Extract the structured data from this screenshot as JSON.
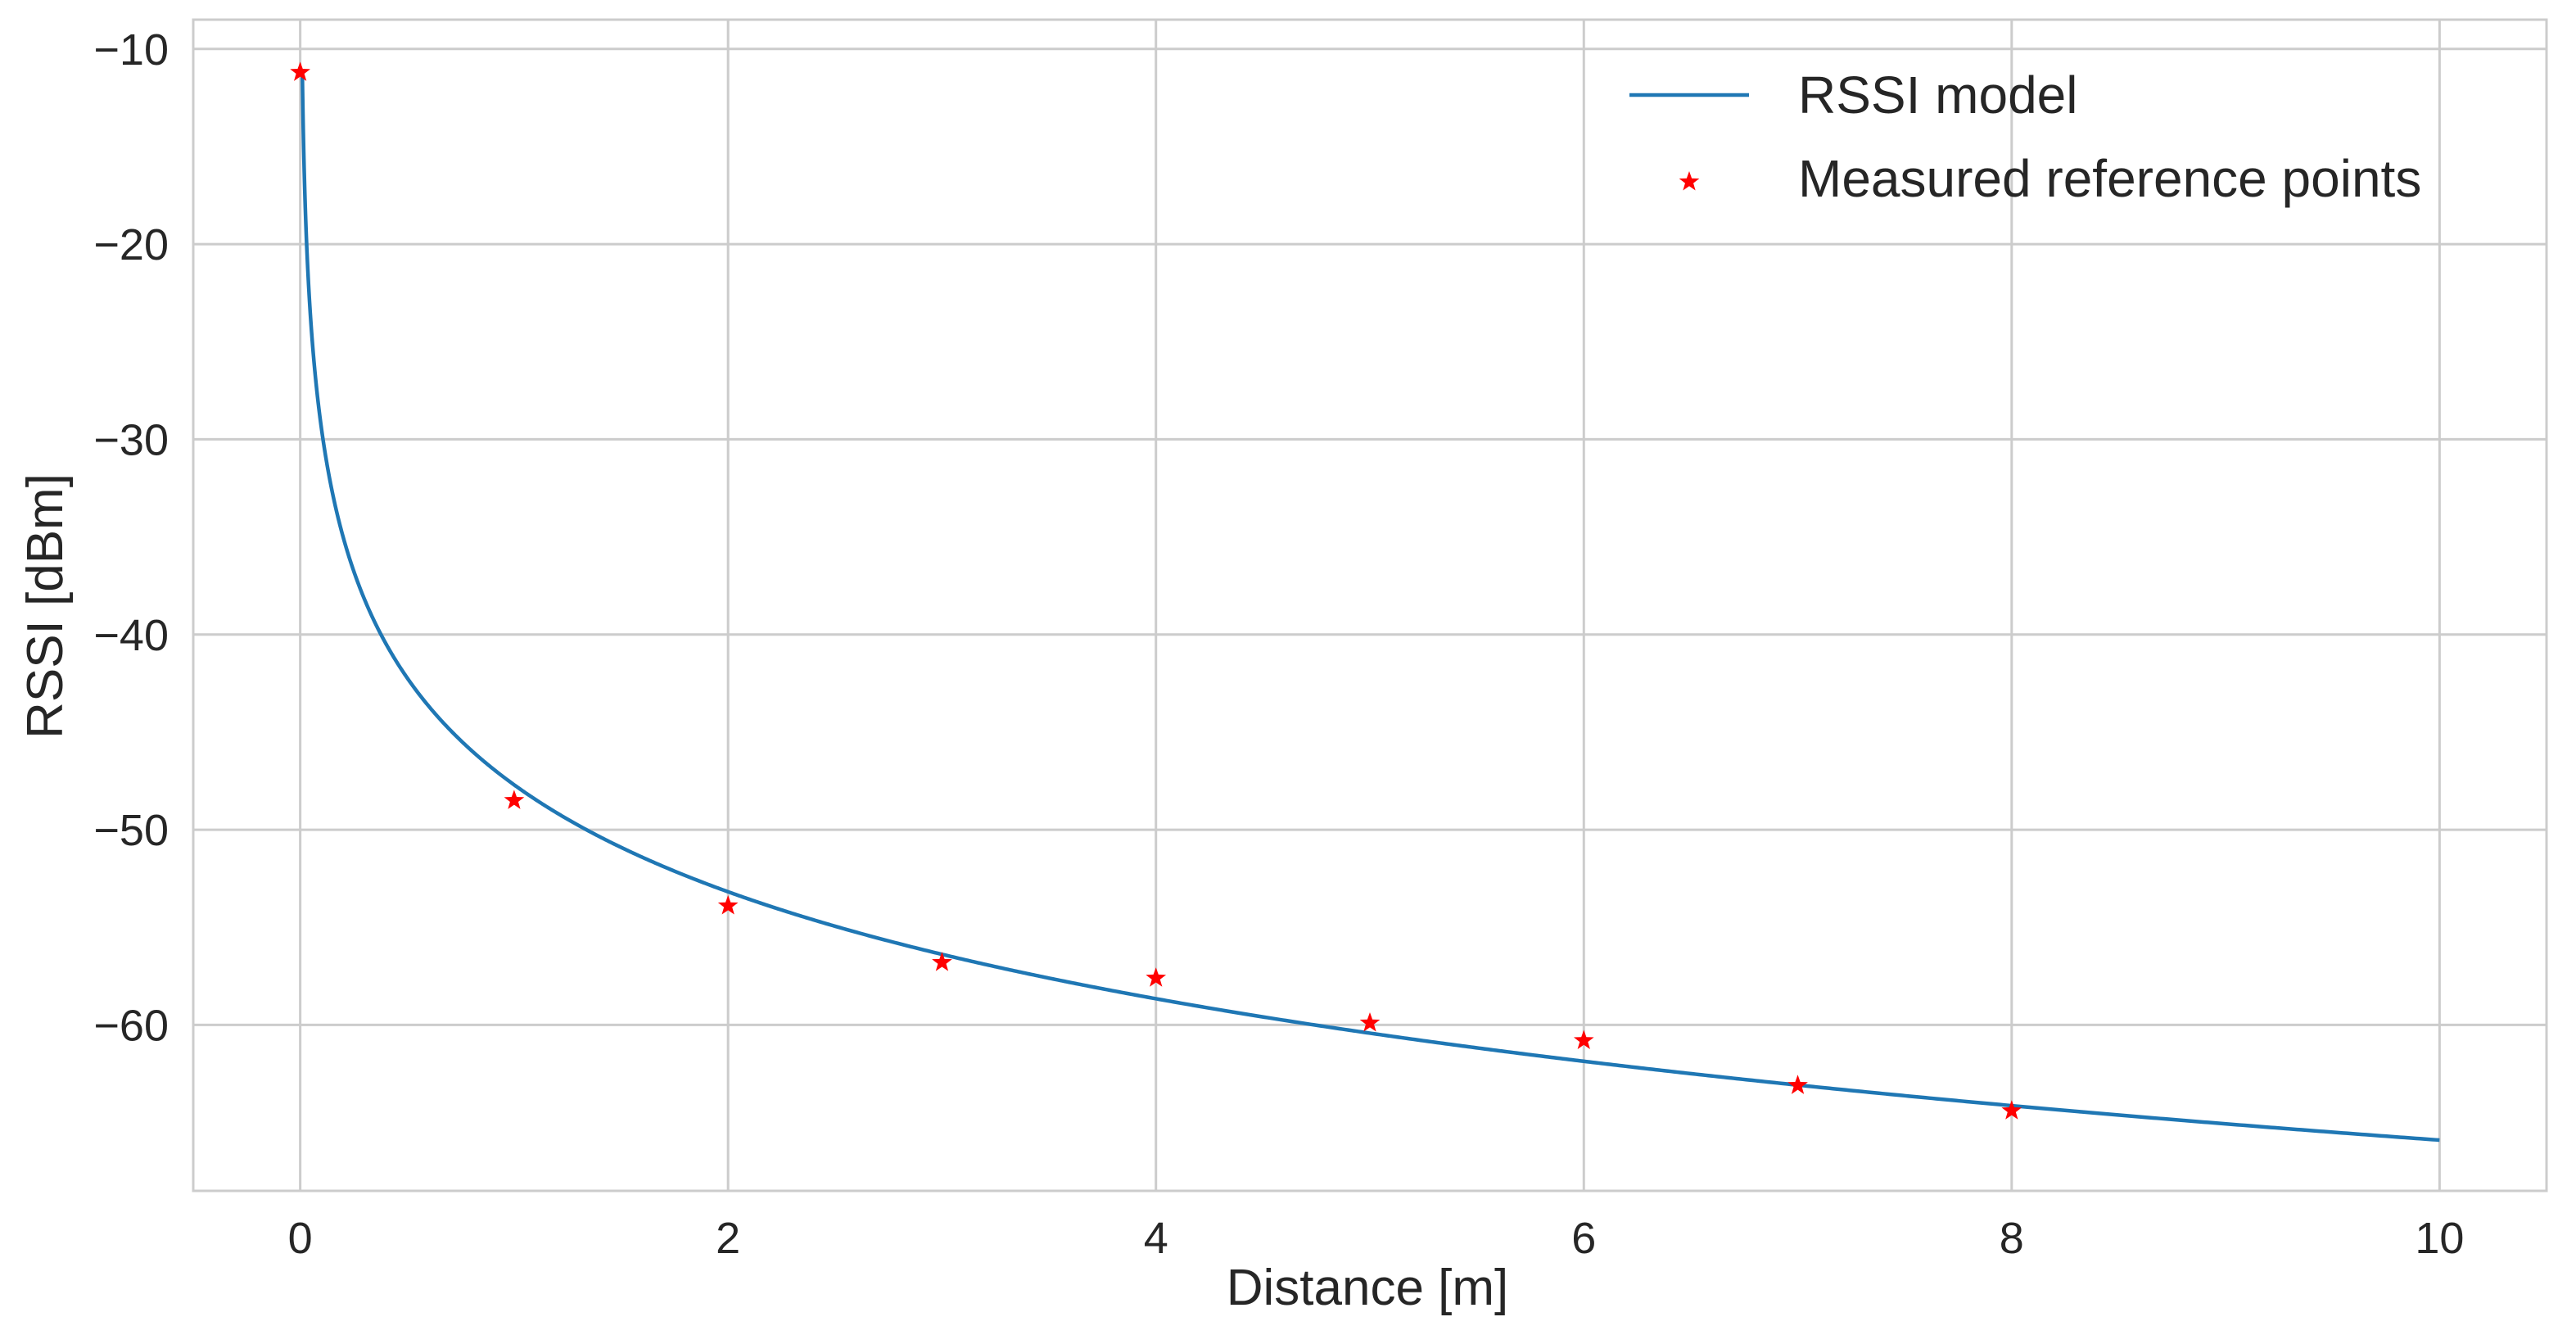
{
  "chart_data": {
    "type": "line",
    "title": "",
    "xlabel": "Distance [m]",
    "ylabel": "RSSI [dBm]",
    "xlim": [
      -0.5,
      10.5
    ],
    "ylim": [
      -68.5,
      -8.5
    ],
    "xticks": [
      0,
      2,
      4,
      6,
      8,
      10
    ],
    "xtick_labels": [
      "0",
      "2",
      "4",
      "6",
      "8",
      "10"
    ],
    "yticks": [
      -10,
      -20,
      -30,
      -40,
      -50,
      -60
    ],
    "ytick_labels": [
      "−10",
      "−20",
      "−30",
      "−40",
      "−50",
      "−60"
    ],
    "grid": true,
    "legend_position": "top-right",
    "series": [
      {
        "name": "RSSI model",
        "kind": "line",
        "color": "#1f77b4",
        "model": {
          "form": "a - b*log10(x)",
          "a": -47.7,
          "b": 18.2,
          "x_start": 0.01,
          "x_end": 10
        }
      },
      {
        "name": "Measured reference points",
        "kind": "scatter",
        "marker": "star",
        "color": "#ff0000",
        "x": [
          0,
          1,
          2,
          3,
          4,
          5,
          6,
          7,
          8
        ],
        "y": [
          -11.2,
          -48.5,
          -53.9,
          -56.8,
          -57.6,
          -59.9,
          -60.8,
          -63.1,
          -64.4
        ]
      }
    ]
  }
}
